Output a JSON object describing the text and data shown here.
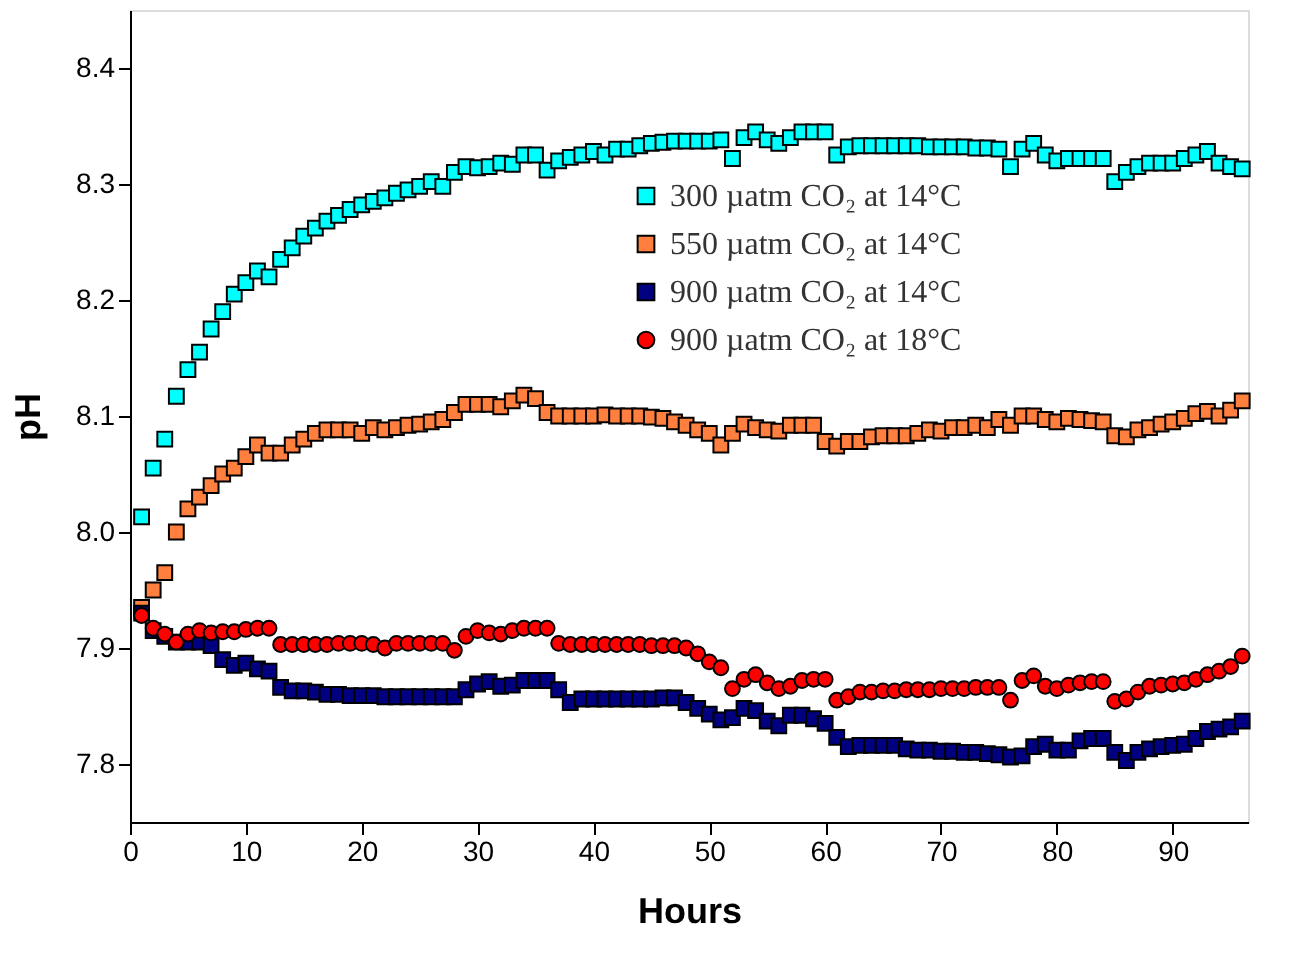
{
  "chart_data": {
    "type": "scatter",
    "xlabel": "Hours",
    "ylabel": "pH",
    "x": [
      1,
      2,
      3,
      4,
      5,
      6,
      7,
      8,
      9,
      10,
      11,
      12,
      13,
      14,
      15,
      16,
      17,
      18,
      19,
      20,
      21,
      22,
      23,
      24,
      25,
      26,
      27,
      28,
      29,
      30,
      31,
      32,
      33,
      34,
      35,
      36,
      37,
      38,
      39,
      40,
      41,
      42,
      43,
      44,
      45,
      46,
      47,
      48,
      49,
      50,
      51,
      52,
      53,
      54,
      55,
      56,
      57,
      58,
      59,
      60,
      61,
      62,
      63,
      64,
      65,
      66,
      67,
      68,
      69,
      70,
      71,
      72,
      73,
      74,
      75,
      76,
      77,
      78,
      79,
      80,
      81,
      82,
      83,
      84,
      85,
      86,
      87,
      88,
      89,
      90,
      91,
      92,
      93,
      94,
      95,
      96
    ],
    "series": [
      {
        "name": "300 µatm CO₂ at 14°C",
        "color": "#00ffff",
        "marker": "square",
        "values": [
          8.013,
          8.055,
          8.08,
          8.117,
          8.14,
          8.155,
          8.175,
          8.19,
          8.205,
          8.215,
          8.225,
          8.22,
          8.235,
          8.245,
          8.255,
          8.262,
          8.268,
          8.273,
          8.278,
          8.282,
          8.285,
          8.288,
          8.292,
          8.295,
          8.298,
          8.302,
          8.298,
          8.31,
          8.315,
          8.314,
          8.315,
          8.318,
          8.317,
          8.325,
          8.325,
          8.312,
          8.32,
          8.323,
          8.325,
          8.328,
          8.325,
          8.33,
          8.33,
          8.333,
          8.335,
          8.336,
          8.337,
          8.337,
          8.337,
          8.337,
          8.338,
          8.322,
          8.34,
          8.345,
          8.338,
          8.335,
          8.34,
          8.345,
          8.345,
          8.345,
          8.325,
          8.332,
          8.333,
          8.333,
          8.333,
          8.333,
          8.333,
          8.333,
          8.332,
          8.332,
          8.332,
          8.332,
          8.331,
          8.331,
          8.33,
          8.315,
          8.33,
          8.335,
          8.325,
          8.32,
          8.322,
          8.322,
          8.322,
          8.322,
          8.302,
          8.31,
          8.315,
          8.318,
          8.318,
          8.318,
          8.322,
          8.325,
          8.328,
          8.318,
          8.315,
          8.313
        ]
      },
      {
        "name": "550 µatm CO₂ at 14°C",
        "color": "#ff7f3f",
        "marker": "square",
        "values": [
          7.935,
          7.95,
          7.965,
          8.0,
          8.02,
          8.03,
          8.04,
          8.05,
          8.055,
          8.065,
          8.075,
          8.068,
          8.068,
          8.075,
          8.08,
          8.085,
          8.088,
          8.088,
          8.088,
          8.085,
          8.09,
          8.088,
          8.09,
          8.092,
          8.093,
          8.095,
          8.097,
          8.103,
          8.11,
          8.11,
          8.11,
          8.108,
          8.113,
          8.118,
          8.115,
          8.103,
          8.1,
          8.1,
          8.1,
          8.1,
          8.101,
          8.1,
          8.1,
          8.1,
          8.099,
          8.098,
          8.095,
          8.092,
          8.088,
          8.085,
          8.075,
          8.085,
          8.093,
          8.09,
          8.088,
          8.087,
          8.092,
          8.092,
          8.092,
          8.078,
          8.074,
          8.078,
          8.078,
          8.082,
          8.083,
          8.083,
          8.083,
          8.085,
          8.088,
          8.087,
          8.09,
          8.09,
          8.092,
          8.09,
          8.097,
          8.092,
          8.1,
          8.1,
          8.097,
          8.095,
          8.098,
          8.097,
          8.096,
          8.095,
          8.083,
          8.082,
          8.088,
          8.09,
          8.093,
          8.095,
          8.098,
          8.102,
          8.104,
          8.1,
          8.105,
          8.113
        ]
      },
      {
        "name": "900 µatm CO₂ at 14°C",
        "color": "#000080",
        "marker": "square",
        "values": [
          7.93,
          7.915,
          7.91,
          7.905,
          7.905,
          7.905,
          7.902,
          7.89,
          7.885,
          7.887,
          7.882,
          7.88,
          7.866,
          7.863,
          7.863,
          7.862,
          7.86,
          7.86,
          7.859,
          7.859,
          7.859,
          7.858,
          7.858,
          7.858,
          7.858,
          7.858,
          7.858,
          7.858,
          7.864,
          7.869,
          7.871,
          7.867,
          7.868,
          7.872,
          7.872,
          7.872,
          7.864,
          7.853,
          7.856,
          7.856,
          7.856,
          7.856,
          7.856,
          7.856,
          7.856,
          7.857,
          7.857,
          7.853,
          7.848,
          7.843,
          7.838,
          7.84,
          7.848,
          7.846,
          7.837,
          7.833,
          7.842,
          7.842,
          7.839,
          7.835,
          7.823,
          7.815,
          7.816,
          7.816,
          7.816,
          7.816,
          7.813,
          7.812,
          7.812,
          7.811,
          7.811,
          7.81,
          7.81,
          7.809,
          7.808,
          7.806,
          7.807,
          7.815,
          7.817,
          7.812,
          7.812,
          7.82,
          7.822,
          7.822,
          7.81,
          7.803,
          7.81,
          7.813,
          7.815,
          7.816,
          7.817,
          7.822,
          7.828,
          7.83,
          7.832,
          7.837
        ]
      },
      {
        "name": "900 µatm CO₂ at 18°C",
        "color": "#ff0000",
        "marker": "circle",
        "values": [
          7.928,
          7.917,
          7.912,
          7.905,
          7.912,
          7.915,
          7.913,
          7.914,
          7.914,
          7.916,
          7.917,
          7.917,
          7.903,
          7.903,
          7.903,
          7.903,
          7.903,
          7.904,
          7.904,
          7.904,
          7.903,
          7.9,
          7.904,
          7.904,
          7.904,
          7.904,
          7.904,
          7.898,
          7.91,
          7.915,
          7.913,
          7.912,
          7.915,
          7.917,
          7.917,
          7.917,
          7.904,
          7.903,
          7.903,
          7.903,
          7.903,
          7.903,
          7.903,
          7.903,
          7.902,
          7.902,
          7.902,
          7.9,
          7.895,
          7.888,
          7.883,
          7.865,
          7.873,
          7.877,
          7.87,
          7.865,
          7.867,
          7.872,
          7.873,
          7.873,
          7.855,
          7.858,
          7.862,
          7.862,
          7.863,
          7.863,
          7.864,
          7.864,
          7.864,
          7.865,
          7.865,
          7.865,
          7.866,
          7.866,
          7.866,
          7.855,
          7.872,
          7.876,
          7.867,
          7.865,
          7.868,
          7.87,
          7.871,
          7.871,
          7.854,
          7.856,
          7.862,
          7.867,
          7.868,
          7.869,
          7.87,
          7.873,
          7.877,
          7.88,
          7.884,
          7.893
        ]
      }
    ],
    "xlim": [
      0,
      96.5
    ],
    "ylim": [
      7.75,
      8.45
    ],
    "xticks": [
      0,
      10,
      20,
      30,
      40,
      50,
      60,
      70,
      80,
      90
    ],
    "yticks": [
      7.8,
      7.9,
      {
        "value": 8,
        "label": "8.0"
      },
      8.1,
      8.2,
      8.3,
      8.4
    ],
    "grid": false,
    "legend": "top right"
  }
}
